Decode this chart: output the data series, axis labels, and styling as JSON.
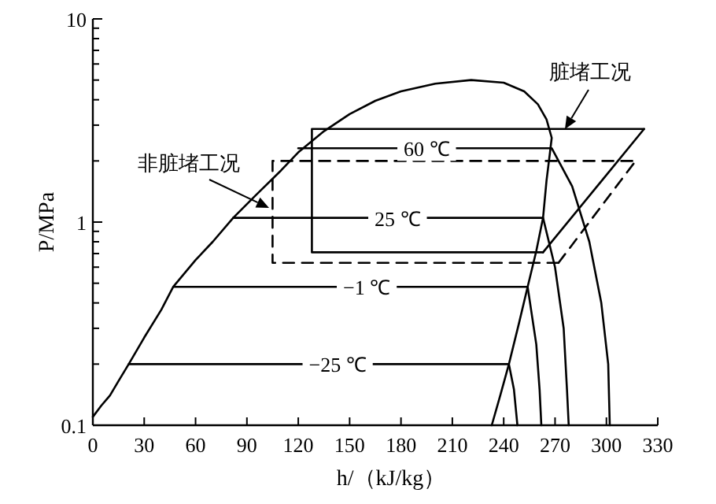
{
  "chart_data": {
    "type": "line",
    "xlabel": "h/（kJ/kg）",
    "ylabel": "P/MPa",
    "log": "y",
    "xlim": [
      0,
      330
    ],
    "xticks": [
      0,
      30,
      60,
      90,
      120,
      150,
      180,
      210,
      240,
      270,
      300,
      330
    ],
    "ylim": [
      0.1,
      10
    ],
    "yticks": [
      0.1,
      1,
      10
    ],
    "grid": false,
    "marker": "none",
    "series": [
      {
        "color": "#000000",
        "line_style": "solid",
        "x": [
          0,
          5,
          10,
          15,
          21,
          30,
          40,
          47,
          60,
          70,
          82,
          95,
          110,
          120,
          135,
          150,
          165,
          180,
          200,
          221,
          240,
          252,
          260,
          265,
          268,
          267,
          265,
          263,
          259,
          254,
          249,
          243,
          238,
          233
        ],
        "values": [
          0.11,
          0.125,
          0.14,
          0.165,
          0.2,
          0.27,
          0.37,
          0.48,
          0.65,
          0.8,
          1.05,
          1.35,
          1.8,
          2.2,
          2.8,
          3.4,
          3.95,
          4.4,
          4.8,
          5.0,
          4.85,
          4.4,
          3.8,
          3.2,
          2.6,
          2.2,
          1.6,
          1.05,
          0.72,
          0.48,
          0.32,
          0.2,
          0.14,
          0.1
        ]
      },
      {
        "color": "#000000",
        "line_style": "solid",
        "x": [
          263,
          128,
          128,
          322
        ],
        "values": [
          0.71,
          0.71,
          2.87,
          2.87
        ]
      },
      {
        "color": "#000000",
        "line_style": "solid",
        "x": [
          263,
          322
        ],
        "values": [
          0.71,
          2.87
        ]
      },
      {
        "color": "#000000",
        "line_style": "dashed",
        "x": [
          272,
          105,
          105,
          317
        ],
        "values": [
          0.63,
          0.63,
          2.0,
          2.0
        ]
      },
      {
        "color": "#000000",
        "line_style": "dashed",
        "x": [
          272,
          317
        ],
        "values": [
          0.63,
          2.0
        ]
      },
      {
        "color": "#000000",
        "line_style": "solid",
        "x": [
          120,
          268,
          280,
          290,
          297,
          301,
          302
        ],
        "values": [
          2.31,
          2.31,
          1.5,
          0.8,
          0.4,
          0.2,
          0.1
        ]
      },
      {
        "color": "#000000",
        "line_style": "solid",
        "x": [
          82,
          263,
          270,
          275,
          277,
          278
        ],
        "values": [
          1.05,
          1.05,
          0.6,
          0.3,
          0.15,
          0.1
        ]
      },
      {
        "color": "#000000",
        "line_style": "solid",
        "x": [
          47,
          254,
          259,
          261,
          262
        ],
        "values": [
          0.48,
          0.48,
          0.25,
          0.15,
          0.1
        ]
      },
      {
        "color": "#000000",
        "line_style": "solid",
        "x": [
          21,
          243,
          246,
          248
        ],
        "values": [
          0.2,
          0.2,
          0.15,
          0.1
        ]
      }
    ],
    "annotations": [
      {
        "text": "60 ℃",
        "x": 195,
        "y": 2.31
      },
      {
        "text": "25 ℃",
        "x": 178,
        "y": 1.05
      },
      {
        "text": "−1 ℃",
        "x": 160,
        "y": 0.48
      },
      {
        "text": "−25 ℃",
        "x": 143,
        "y": 0.2
      },
      "非脏堵工况",
      "脏堵工况"
    ]
  }
}
